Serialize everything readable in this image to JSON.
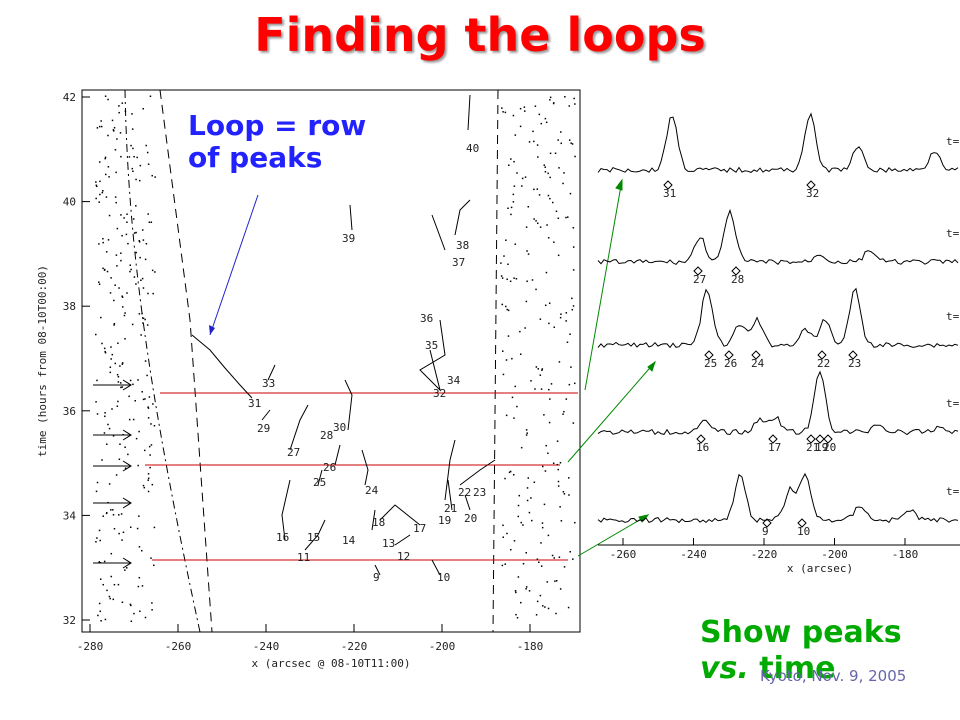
{
  "title": "Finding the loops",
  "loop_note": "Loop = row of peaks",
  "show_note": {
    "show": "Show peaks",
    "vs": "vs.",
    "time": "time"
  },
  "footer": "Kyoto, Nov. 9, 2005",
  "left_plot": {
    "ylabel": "time (hours from 08-10T00:00)",
    "xlabel": "x (arcsec @ 08-10T11:00)",
    "xticks": [
      -280,
      -260,
      -240,
      -220,
      -200,
      -180
    ],
    "yticks": [
      32,
      34,
      36,
      38,
      40,
      42
    ],
    "track_labels": [
      "40",
      "39",
      "38",
      "37",
      "36",
      "35",
      "34",
      "33",
      "32",
      "31",
      "30",
      "29",
      "28",
      "27",
      "26",
      "25",
      "24",
      "23",
      "22",
      "21",
      "20",
      "19",
      "18",
      "17",
      "16",
      "15",
      "14",
      "13",
      "12",
      "11",
      "10",
      "9"
    ]
  },
  "right_plot": {
    "xlabel": "x (arcsec)",
    "xticks": [
      -260,
      -240,
      -220,
      -200,
      -180
    ],
    "peak_labels": [
      "31",
      "32",
      "27",
      "28",
      "25",
      "26",
      "24",
      "22",
      "23",
      "16",
      "17",
      "21",
      "19",
      "20",
      "9",
      "10"
    ],
    "time_labels": [
      "t=",
      "t=",
      "t=",
      "t=",
      "t="
    ]
  }
}
